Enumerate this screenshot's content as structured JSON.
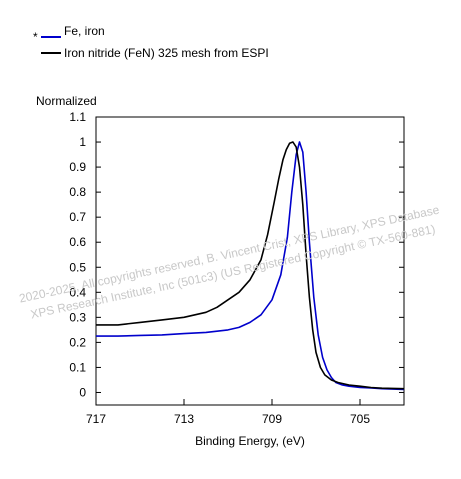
{
  "legend_marker": "*",
  "watermark": {
    "line1": "2020-2025, All copyrights reserved,   B. Vincent Crist, XPS Library, XPS Database",
    "line2": "XPS Research Institute, Inc (501c3)   (US Registered Copyright © TX-560-881)"
  },
  "chart_data": {
    "type": "line",
    "ylabel": "Normalized",
    "xlabel": "Binding Energy, (eV)",
    "xlim": [
      717,
      703
    ],
    "x_reversed": true,
    "ylim": [
      -0.05,
      1.1
    ],
    "xticks": [
      717,
      713,
      709,
      705
    ],
    "yticks": [
      0,
      0.1,
      0.2,
      0.3,
      0.4,
      0.5,
      0.6,
      0.7,
      0.8,
      0.9,
      1,
      1.1
    ],
    "series": [
      {
        "name": "Fe, iron",
        "color": "#0000cc",
        "x": [
          717,
          716,
          715,
          714,
          713,
          712,
          711,
          710.5,
          710,
          709.5,
          709,
          708.6,
          708.3,
          708.1,
          707.9,
          707.75,
          707.6,
          707.45,
          707.3,
          707.1,
          706.9,
          706.7,
          706.5,
          706.3,
          706.1,
          705.8,
          705.5,
          705,
          704.5,
          704,
          703
        ],
        "y": [
          0.225,
          0.225,
          0.228,
          0.23,
          0.235,
          0.24,
          0.25,
          0.26,
          0.28,
          0.31,
          0.37,
          0.47,
          0.62,
          0.8,
          0.95,
          1.0,
          0.96,
          0.8,
          0.6,
          0.38,
          0.23,
          0.14,
          0.09,
          0.06,
          0.04,
          0.03,
          0.025,
          0.02,
          0.018,
          0.015,
          0.012
        ]
      },
      {
        "name": "Iron nitride (FeN) 325 mesh from ESPI",
        "color": "#000000",
        "x": [
          717,
          716,
          715,
          714,
          713,
          712,
          711.5,
          711,
          710.5,
          710,
          709.5,
          709.2,
          708.9,
          708.7,
          708.5,
          708.35,
          708.2,
          708.05,
          707.9,
          707.75,
          707.6,
          707.45,
          707.3,
          707.15,
          707,
          706.8,
          706.6,
          706.3,
          706,
          705.5,
          705,
          704.5,
          704,
          703
        ],
        "y": [
          0.27,
          0.27,
          0.28,
          0.29,
          0.3,
          0.32,
          0.34,
          0.37,
          0.4,
          0.45,
          0.53,
          0.63,
          0.76,
          0.85,
          0.93,
          0.97,
          0.995,
          1.0,
          0.98,
          0.9,
          0.75,
          0.55,
          0.38,
          0.25,
          0.16,
          0.1,
          0.07,
          0.05,
          0.04,
          0.03,
          0.025,
          0.02,
          0.017,
          0.015
        ]
      }
    ]
  }
}
